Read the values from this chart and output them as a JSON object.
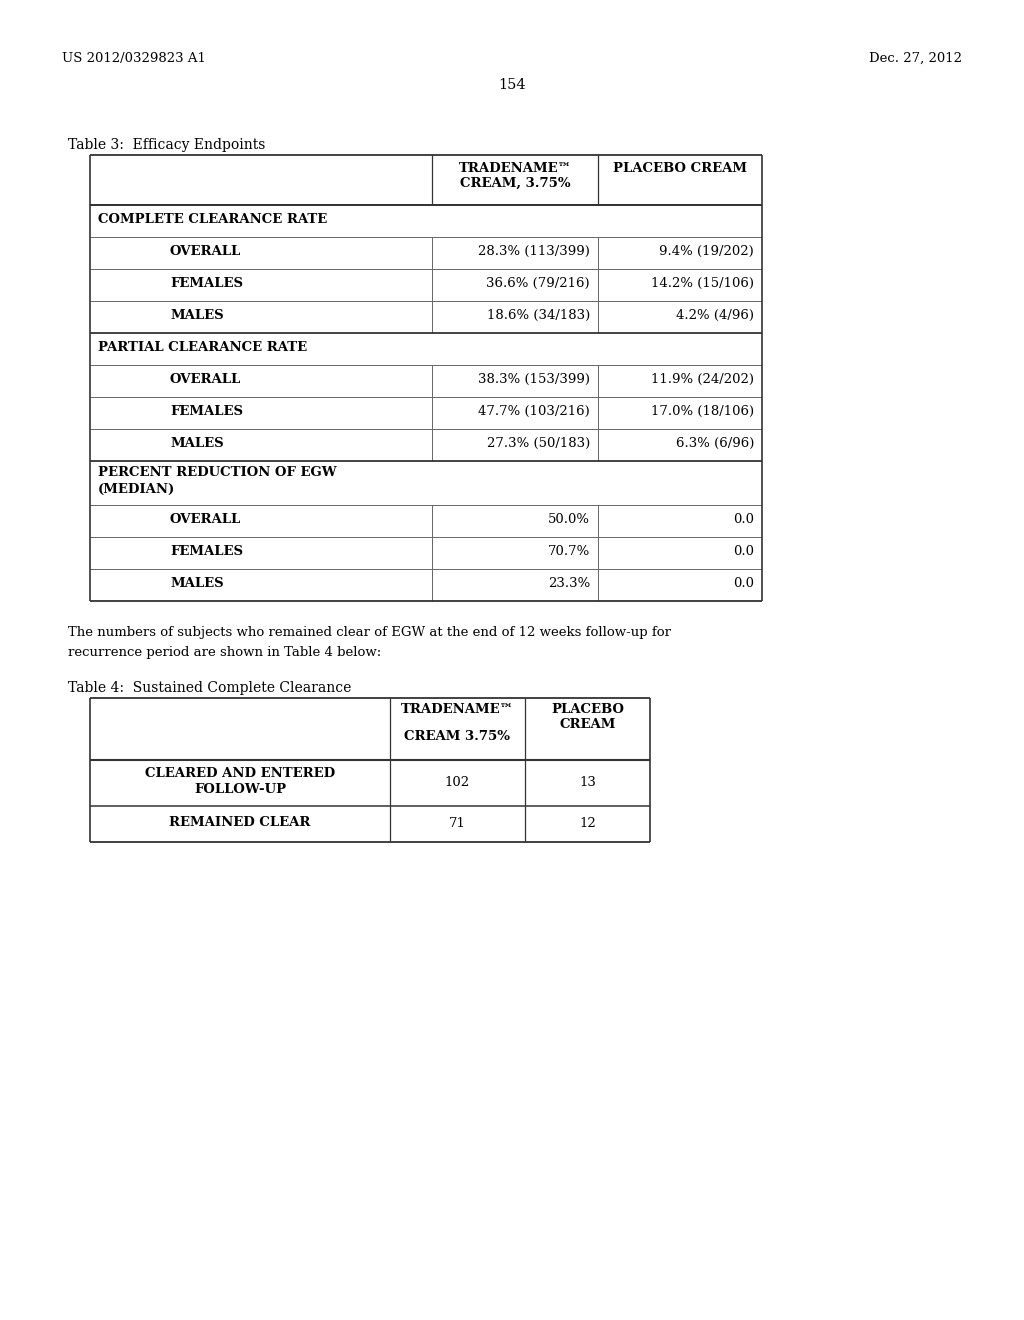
{
  "header_left": "US 2012/0329823 A1",
  "header_right": "Dec. 27, 2012",
  "page_number": "154",
  "table3_title": "Table 3:  Efficacy Endpoints",
  "table3_col_headers": [
    "TRADENAME™\nCREAM, 3.75%",
    "PLACEBO CREAM"
  ],
  "table3_sections": [
    {
      "section_label": "COMPLETE CLEARANCE RATE",
      "rows": [
        [
          "OVERALL",
          "28.3% (113/399)",
          "9.4% (19/202)"
        ],
        [
          "FEMALES",
          "36.6% (79/216)",
          "14.2% (15/106)"
        ],
        [
          "MALES",
          "18.6% (34/183)",
          "4.2% (4/96)"
        ]
      ]
    },
    {
      "section_label": "PARTIAL CLEARANCE RATE",
      "rows": [
        [
          "OVERALL",
          "38.3% (153/399)",
          "11.9% (24/202)"
        ],
        [
          "FEMALES",
          "47.7% (103/216)",
          "17.0% (18/106)"
        ],
        [
          "MALES",
          "27.3% (50/183)",
          "6.3% (6/96)"
        ]
      ]
    },
    {
      "section_label": "PERCENT REDUCTION OF EGW\n(MEDIAN)",
      "rows": [
        [
          "OVERALL",
          "50.0%",
          "0.0"
        ],
        [
          "FEMALES",
          "70.7%",
          "0.0"
        ],
        [
          "MALES",
          "23.3%",
          "0.0"
        ]
      ]
    }
  ],
  "intertext_line1": "The numbers of subjects who remained clear of EGW at the end of 12 weeks follow-up for",
  "intertext_line2": "recurrence period are shown in Table 4 below:",
  "table4_title": "Table 4:  Sustained Complete Clearance",
  "table4_col_headers": [
    "TRADENAME™\nCREAM 3.75%",
    "PLACEBO\nCREAM"
  ],
  "table4_rows": [
    [
      "CLEARED AND ENTERED\nFOLLOW-UP",
      "102",
      "13"
    ],
    [
      "REMAINED CLEAR",
      "71",
      "12"
    ]
  ],
  "bg_color": "#ffffff",
  "text_color": "#000000",
  "font_size": 9.5
}
